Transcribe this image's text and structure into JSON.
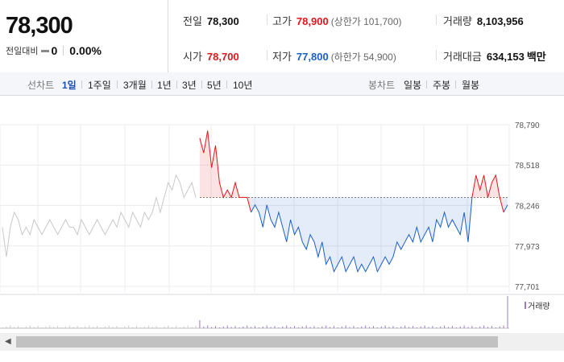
{
  "header": {
    "price": "78,300",
    "diff_label": "전일대비",
    "diff_value": "0",
    "diff_pct": "0.00%"
  },
  "stats": {
    "prev_label": "전일",
    "prev_value": "78,300",
    "high_label": "고가",
    "high_value": "78,900",
    "upper_limit": "(상한가 101,700)",
    "volume_label": "거래량",
    "volume_value": "8,103,956",
    "open_label": "시가",
    "open_value": "78,700",
    "low_label": "저가",
    "low_value": "77,800",
    "lower_limit": "(하한가 54,900)",
    "amount_label": "거래대금",
    "amount_value": "634,153",
    "amount_unit": "백만"
  },
  "tabs": {
    "line_label": "선차트",
    "line_items": [
      "1일",
      "1주일",
      "3개월",
      "1년",
      "3년",
      "5년",
      "10년"
    ],
    "active": "1일",
    "candle_label": "봉차트",
    "candle_items": [
      "일봉",
      "주봉",
      "월봉"
    ]
  },
  "legend": {
    "volume": "거래량"
  },
  "colors": {
    "up": "#e0161c",
    "down": "#1a5fc7",
    "prev": "#c8c8c8"
  },
  "chart_data": {
    "type": "line",
    "y_ticks": [
      "78,790",
      "78,518",
      "78,246",
      "77,973",
      "77,701"
    ],
    "y_tick_values": [
      78790,
      78518,
      78246,
      77973,
      77701
    ],
    "ylim": [
      77701,
      78790
    ],
    "baseline": 78300,
    "series": [
      {
        "values": [
          78100,
          77900,
          78100,
          78200,
          78150,
          78050,
          78100,
          78050,
          78150,
          78100,
          78050,
          78100,
          78150,
          78100,
          78050,
          78100,
          78150,
          78100,
          78100,
          78050,
          78150,
          78100,
          78050,
          78100,
          78150,
          78100,
          78050,
          78100,
          78150,
          78100,
          78200,
          78150,
          78100,
          78200,
          78150,
          78100,
          78200,
          78150,
          78200,
          78300,
          78200,
          78300,
          78400,
          78350,
          78450,
          78400,
          78300,
          78350,
          78400,
          78300,
          78700,
          78600,
          78750,
          78500,
          78650,
          78400,
          78300,
          78350,
          78300,
          78400,
          78300,
          78300,
          78300,
          78200,
          78250,
          78200,
          78100,
          78250,
          78150,
          78100,
          78200,
          78100,
          78000,
          78150,
          78050,
          78100,
          78000,
          77950,
          78050,
          78000,
          77900,
          78000,
          77850,
          77900,
          77800,
          77850,
          77900,
          77800,
          77850,
          77900,
          77800,
          77850,
          77800,
          77850,
          77900,
          77800,
          77850,
          77900,
          77850,
          77900,
          78000,
          77950,
          78000,
          78050,
          78000,
          78100,
          78000,
          78050,
          78100,
          78000,
          78150,
          78100,
          78200,
          78100,
          78150,
          78100,
          78050,
          78200,
          78000,
          78300,
          78450,
          78350,
          78450,
          78300,
          78400,
          78450,
          78300,
          78200,
          78250
        ]
      }
    ],
    "grid": true
  }
}
